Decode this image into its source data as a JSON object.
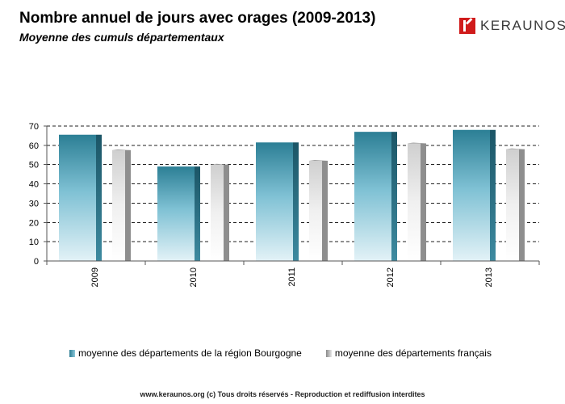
{
  "header": {
    "title": "Nombre annuel de jours avec orages (2009-2013)",
    "subtitle": "Moyenne des cumuls départementaux"
  },
  "logo": {
    "text": "KERAUNOS",
    "color": "#d01b1b"
  },
  "footer": {
    "text": "www.keraunos.org  (c) Tous droits réservés - Reproduction et rediffusion interdites"
  },
  "chart_data": {
    "type": "bar",
    "title": "Nombre annuel de jours avec orages (2009-2013)",
    "subtitle": "Moyenne des cumuls départementaux",
    "categories": [
      "2009",
      "2010",
      "2011",
      "2012",
      "2013"
    ],
    "series": [
      {
        "name": "moyenne des départements de la région Bourgogne",
        "values": [
          65.5,
          49,
          61.5,
          67,
          68
        ],
        "color": "#2c7d93"
      },
      {
        "name": "moyenne des départements français",
        "values": [
          57.5,
          50,
          52,
          61,
          58
        ],
        "color": "#bdbdbd"
      }
    ],
    "ylim": [
      0,
      70
    ],
    "yticks": [
      0,
      10,
      20,
      30,
      40,
      50,
      60,
      70
    ],
    "grid": true,
    "legend_position": "bottom",
    "xlabel": "",
    "ylabel": ""
  }
}
